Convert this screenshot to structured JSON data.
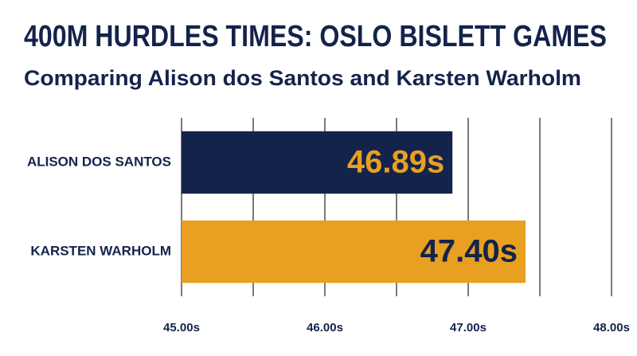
{
  "chart_data": {
    "type": "hbar",
    "title": "400M HURDLES TIMES: OSLO BISLETT GAMES",
    "subtitle": "Comparing Alison dos Santos and Karsten Warholm",
    "categories": [
      "ALISON DOS SANTOS",
      "KARSTEN WARHOLM"
    ],
    "values": [
      46.89,
      47.4
    ],
    "value_labels": [
      "46.89s",
      "47.40s"
    ],
    "colors": [
      "#14234b",
      "#e8a020"
    ],
    "label_colors": [
      "#e8a020",
      "#14234b"
    ],
    "xlim": [
      45,
      48
    ],
    "xticks": [
      {
        "value": 45,
        "label": "45.00s"
      },
      {
        "value": 46,
        "label": "46.00s"
      },
      {
        "value": 47,
        "label": "47.00s"
      },
      {
        "value": 48,
        "label": "48.00s"
      }
    ],
    "xminor": [
      45.5,
      46.5,
      47.5
    ],
    "grid": true
  }
}
